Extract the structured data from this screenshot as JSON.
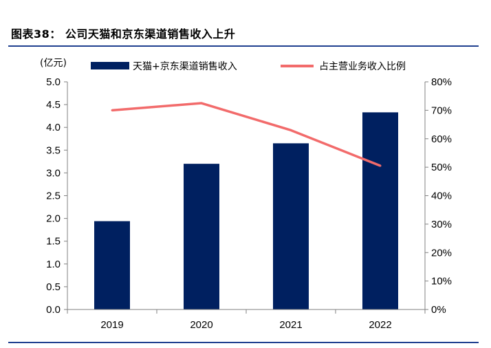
{
  "figure": {
    "title": "图表38：  公司天猫和京东渠道销售收入上升"
  },
  "chart_data": {
    "type": "bar",
    "categories": [
      "2019",
      "2020",
      "2021",
      "2022"
    ],
    "series": [
      {
        "name": "天猫+京东渠道销售收入",
        "type": "bar",
        "axis": "left",
        "values": [
          1.94,
          3.2,
          3.65,
          4.33
        ],
        "color": "#002060"
      },
      {
        "name": "占主营业务收入比例",
        "type": "line",
        "axis": "right",
        "values": [
          0.7,
          0.725,
          0.63,
          0.505
        ],
        "color": "#f26b6b"
      }
    ],
    "ylabel": "(亿元)",
    "ylim": [
      0,
      5
    ],
    "yticks": [
      "0.0",
      "0.5",
      "1.0",
      "1.5",
      "2.0",
      "2.5",
      "3.0",
      "3.5",
      "4.0",
      "4.5",
      "5.0"
    ],
    "y2lim": [
      0,
      0.8
    ],
    "y2ticks": [
      "0%",
      "10%",
      "20%",
      "30%",
      "40%",
      "50%",
      "60%",
      "70%",
      "80%"
    ],
    "grid": false,
    "legend": "top"
  }
}
